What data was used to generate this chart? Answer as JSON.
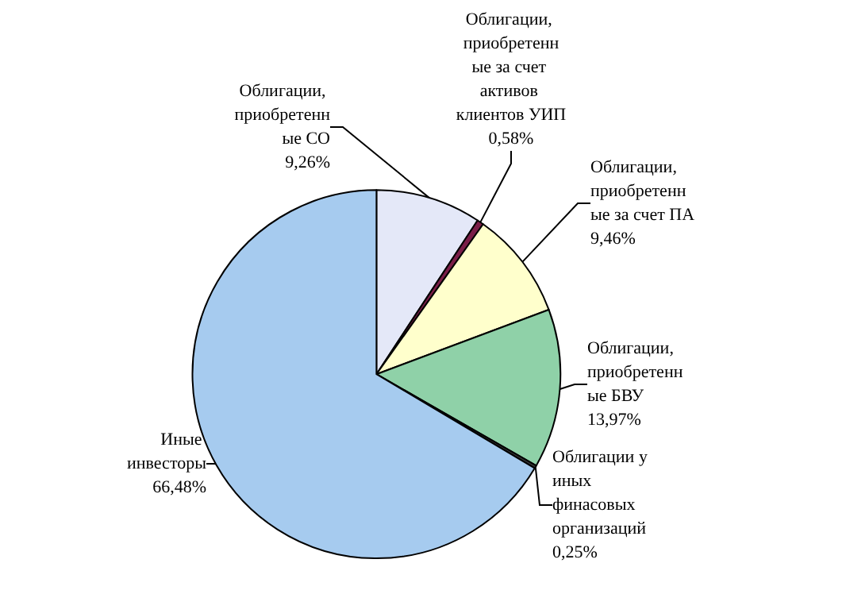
{
  "chart_data": {
    "type": "pie",
    "categories": [
      "Облигации, приобретенные СО",
      "Облигации, приобретенные за счет активов клиентов УИП",
      "Облигации, приобретенные за счет ПА",
      "Облигации, приобретенные БВУ",
      "Облигации у иных финасовых организаций",
      "Иные инвесторы"
    ],
    "values": [
      9.26,
      0.58,
      9.46,
      13.97,
      0.25,
      66.48
    ],
    "value_labels": [
      "9,26%",
      "0,58%",
      "9,46%",
      "13,97%",
      "0,25%",
      "66,48%"
    ],
    "colors": [
      "#e4e8f8",
      "#7a1e48",
      "#ffffcc",
      "#8fd1a8",
      "#3a3a3a",
      "#a6cbef"
    ],
    "legend": false
  }
}
